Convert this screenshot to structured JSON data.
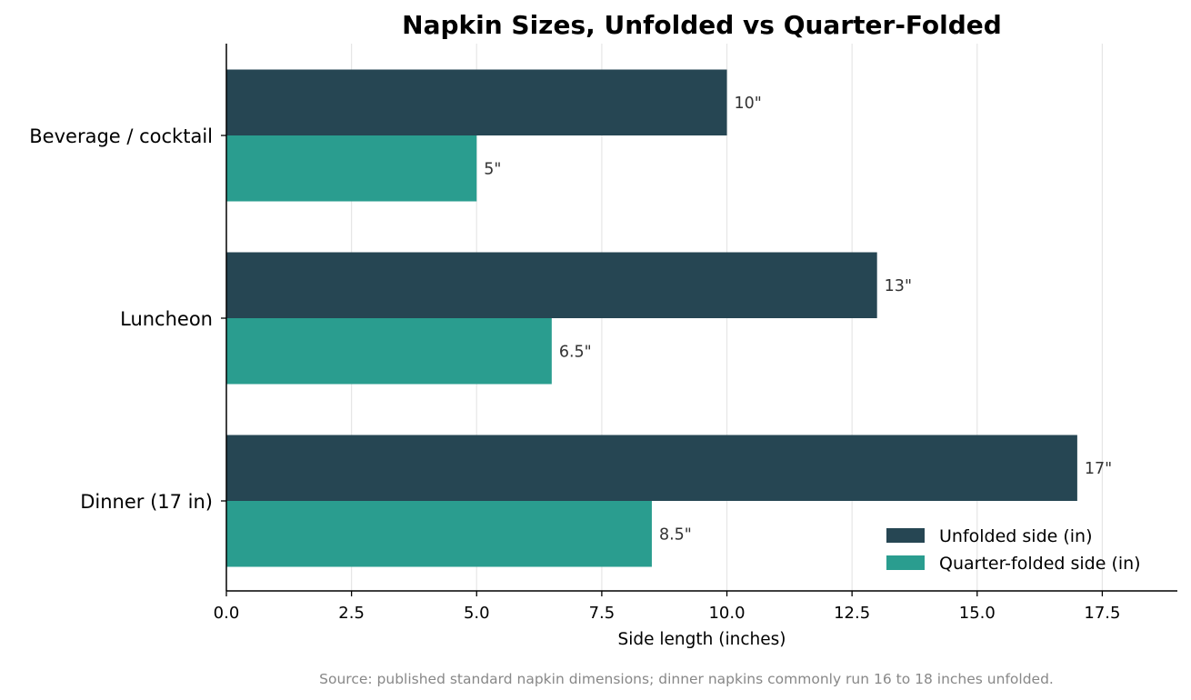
{
  "chart_data": {
    "type": "bar",
    "orientation": "horizontal",
    "title": "Napkin Sizes, Unfolded vs Quarter-Folded",
    "xlabel": "Side length (inches)",
    "ylabel": "",
    "categories": [
      "Beverage / cocktail",
      "Luncheon",
      "Dinner (17 in)"
    ],
    "series": [
      {
        "name": "Unfolded side (in)",
        "values": [
          10,
          13,
          17
        ],
        "labels": [
          "10\"",
          "13\"",
          "17\""
        ],
        "color": "#264653"
      },
      {
        "name": "Quarter-folded side (in)",
        "values": [
          5,
          6.5,
          8.5
        ],
        "labels": [
          "5\"",
          "6.5\"",
          "8.5\""
        ],
        "color": "#2a9d8f"
      }
    ],
    "xlim": [
      0,
      19
    ],
    "xticks": [
      0,
      2.5,
      5,
      7.5,
      10,
      12.5,
      15,
      17.5
    ],
    "xtick_labels": [
      "0.0",
      "2.5",
      "5.0",
      "7.5",
      "10.0",
      "12.5",
      "15.0",
      "17.5"
    ],
    "grid": "vertical",
    "legend_position": "lower-right",
    "source_note": "Source: published standard napkin dimensions; dinner napkins commonly run 16 to 18 inches unfolded."
  },
  "colors": {
    "grid": "#e6e6e6",
    "axis": "#000000"
  }
}
